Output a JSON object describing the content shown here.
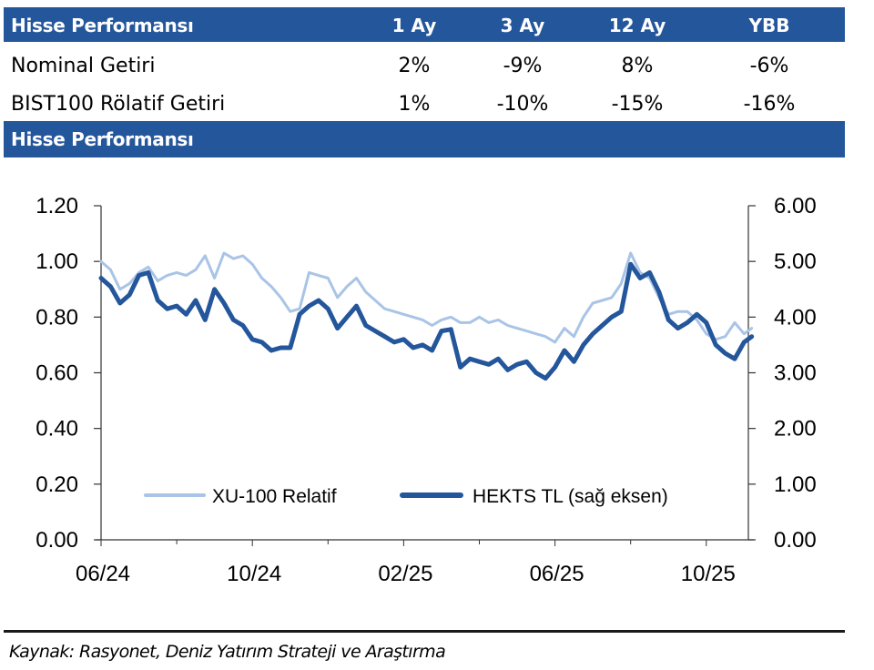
{
  "table": {
    "header": {
      "title": "Hisse Performansı",
      "columns": [
        "1 Ay",
        "3 Ay",
        "12 Ay",
        "YBB"
      ]
    },
    "rows": [
      {
        "label": "Nominal Getiri",
        "values": [
          "2%",
          "-9%",
          "8%",
          "-6%"
        ]
      },
      {
        "label": "BIST100 Rölatif Getiri",
        "values": [
          "1%",
          "-10%",
          "-15%",
          "-16%"
        ]
      }
    ]
  },
  "chart_section_title": "Hisse Performansı",
  "source": "Kaynak: Rasyonet, Deniz Yatırım Strateji ve Araştırma",
  "colors": {
    "header_band": "#24569b",
    "series_relative": "#a9c4e6",
    "series_price": "#24569b"
  },
  "chart_data": {
    "type": "line",
    "title": "Hisse Performansı",
    "xlabel": "",
    "x_tick_labels": [
      "06/24",
      "10/24",
      "02/25",
      "06/25",
      "10/25"
    ],
    "x_range_months": [
      0,
      17.2
    ],
    "x_unit": "months since 06/2024",
    "left_axis": {
      "label": "",
      "ylim": [
        0,
        1.2
      ],
      "ticks": [
        "0.00",
        "0.20",
        "0.40",
        "0.60",
        "0.80",
        "1.00",
        "1.20"
      ]
    },
    "right_axis": {
      "label": "",
      "ylim": [
        0,
        6
      ],
      "ticks": [
        "0.00",
        "1.00",
        "2.00",
        "3.00",
        "4.00",
        "5.00",
        "6.00"
      ]
    },
    "grid": false,
    "legend": {
      "position": "bottom-center",
      "entries": [
        "XU-100 Relatif",
        "HEKTS TL (sağ eksen)"
      ]
    },
    "series": [
      {
        "name": "XU-100 Relatif",
        "axis": "left",
        "x": [
          0,
          0.25,
          0.5,
          0.75,
          1.0,
          1.25,
          1.5,
          1.75,
          2.0,
          2.25,
          2.5,
          2.75,
          3.0,
          3.25,
          3.5,
          3.75,
          4.0,
          4.25,
          4.5,
          4.75,
          5.0,
          5.25,
          5.5,
          5.75,
          6.0,
          6.25,
          6.5,
          6.75,
          7.0,
          7.25,
          7.5,
          7.75,
          8.0,
          8.25,
          8.5,
          8.75,
          9.0,
          9.25,
          9.5,
          9.75,
          10.0,
          10.25,
          10.5,
          10.75,
          11.0,
          11.25,
          11.5,
          11.75,
          12.0,
          12.25,
          12.5,
          12.75,
          13.0,
          13.25,
          13.5,
          13.75,
          14.0,
          14.25,
          14.5,
          14.75,
          15.0,
          15.25,
          15.5,
          15.75,
          16.0,
          16.25,
          16.5,
          16.75,
          17.0,
          17.2
        ],
        "y": [
          1.0,
          0.97,
          0.9,
          0.92,
          0.96,
          0.98,
          0.93,
          0.95,
          0.96,
          0.95,
          0.97,
          1.02,
          0.94,
          1.03,
          1.01,
          1.02,
          0.99,
          0.94,
          0.91,
          0.87,
          0.82,
          0.83,
          0.96,
          0.95,
          0.94,
          0.87,
          0.91,
          0.94,
          0.89,
          0.86,
          0.83,
          0.82,
          0.81,
          0.8,
          0.79,
          0.77,
          0.79,
          0.8,
          0.78,
          0.78,
          0.8,
          0.78,
          0.79,
          0.77,
          0.76,
          0.75,
          0.74,
          0.73,
          0.71,
          0.76,
          0.73,
          0.8,
          0.85,
          0.86,
          0.87,
          0.92,
          1.03,
          0.96,
          0.94,
          0.87,
          0.81,
          0.82,
          0.82,
          0.79,
          0.74,
          0.72,
          0.73,
          0.78,
          0.74,
          0.76
        ]
      },
      {
        "name": "HEKTS TL (sağ eksen)",
        "axis": "right",
        "x": [
          0,
          0.25,
          0.5,
          0.75,
          1.0,
          1.25,
          1.5,
          1.75,
          2.0,
          2.25,
          2.5,
          2.75,
          3.0,
          3.25,
          3.5,
          3.75,
          4.0,
          4.25,
          4.5,
          4.75,
          5.0,
          5.25,
          5.5,
          5.75,
          6.0,
          6.25,
          6.5,
          6.75,
          7.0,
          7.25,
          7.5,
          7.75,
          8.0,
          8.25,
          8.5,
          8.75,
          9.0,
          9.25,
          9.5,
          9.75,
          10.0,
          10.25,
          10.5,
          10.75,
          11.0,
          11.25,
          11.5,
          11.75,
          12.0,
          12.25,
          12.5,
          12.75,
          13.0,
          13.25,
          13.5,
          13.75,
          14.0,
          14.25,
          14.5,
          14.75,
          15.0,
          15.25,
          15.5,
          15.75,
          16.0,
          16.25,
          16.5,
          16.75,
          17.0,
          17.2
        ],
        "y": [
          4.7,
          4.55,
          4.25,
          4.4,
          4.75,
          4.8,
          4.3,
          4.15,
          4.2,
          4.05,
          4.3,
          3.95,
          4.5,
          4.25,
          3.95,
          3.85,
          3.6,
          3.55,
          3.4,
          3.45,
          3.45,
          4.05,
          4.2,
          4.3,
          4.15,
          3.8,
          4.0,
          4.2,
          3.85,
          3.75,
          3.65,
          3.55,
          3.6,
          3.45,
          3.5,
          3.4,
          3.75,
          3.78,
          3.1,
          3.25,
          3.2,
          3.15,
          3.25,
          3.05,
          3.15,
          3.2,
          3.0,
          2.9,
          3.1,
          3.4,
          3.2,
          3.5,
          3.7,
          3.85,
          4.0,
          4.1,
          4.95,
          4.7,
          4.8,
          4.45,
          3.95,
          3.8,
          3.9,
          4.05,
          3.9,
          3.5,
          3.35,
          3.25,
          3.55,
          3.65
        ]
      }
    ]
  }
}
